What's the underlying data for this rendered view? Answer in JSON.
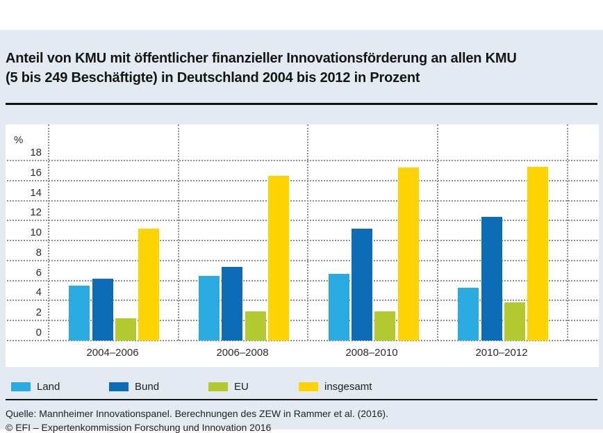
{
  "header": {
    "title_line1": "Anteil von KMU mit öffentlicher finanzieller Innovationsförderung an allen KMU",
    "title_line2": "(5 bis 249 Beschäftigte) in Deutschland 2004 bis 2012 in Prozent"
  },
  "chart_data": {
    "type": "bar",
    "title": "Anteil von KMU mit öffentlicher finanzieller Innovationsförderung an allen KMU (5 bis 249 Beschäftigte) in Deutschland 2004 bis 2012 in Prozent",
    "unit_label": "%",
    "categories": [
      "2004–2006",
      "2006–2008",
      "2008–2010",
      "2010–2012"
    ],
    "series": [
      {
        "name": "Land",
        "color": "#29abe2",
        "values": [
          5.5,
          6.5,
          6.7,
          5.3
        ]
      },
      {
        "name": "Bund",
        "color": "#0c6cb5",
        "values": [
          6.2,
          7.4,
          11.2,
          12.4
        ]
      },
      {
        "name": "EU",
        "color": "#b2ca2f",
        "values": [
          2.2,
          2.9,
          2.9,
          3.8
        ]
      },
      {
        "name": "insgesamt",
        "color": "#fdd401",
        "values": [
          11.2,
          16.5,
          17.3,
          17.4
        ]
      }
    ],
    "ylim": [
      0,
      18
    ],
    "yticks": [
      0,
      2,
      4,
      6,
      8,
      10,
      12,
      14,
      16,
      18
    ],
    "grid": "dotted horizontal gridlines at every tick, dotted vertical separators between year groups",
    "legend_position": "bottom"
  },
  "footer": {
    "source": "Quelle: Mannheimer Innovationspanel. Berechnungen des ZEW in Rammer et al. (2016).",
    "copyright": "© EFI – Expertenkommission Forschung und Innovation 2016"
  },
  "colors": {
    "page_background": "#ffffff",
    "band_background": "#e4eaf1",
    "plot_background": "#ffffff",
    "gridline": "#8d8d8d",
    "rule": "#111111",
    "text": "#1e1e1e"
  }
}
